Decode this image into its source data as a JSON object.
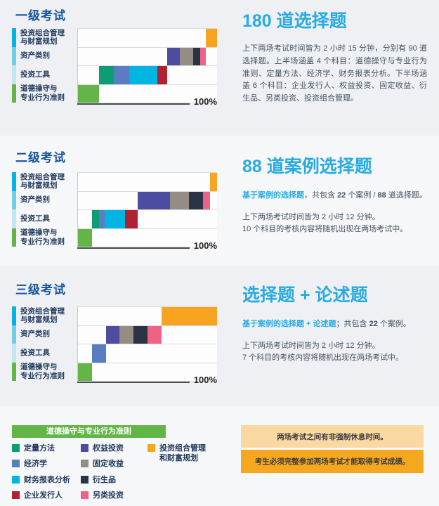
{
  "colors": {
    "header_blue": "#17549e",
    "title_cyan": "#29abe2",
    "body_text": "#44515f",
    "label_navy": "#21395c",
    "axis_dark": "#4a4d4f",
    "section_bg_gray": "#eef0f3",
    "section_bg_light": "#f6f7f9",
    "plot_bg": "#fdfdfe"
  },
  "subjects": {
    "ethics": {
      "label": "道德操守与专业行为准则",
      "color": "#62b546"
    },
    "quant": {
      "label": "定量方法",
      "color": "#0b9d74"
    },
    "econ": {
      "label": "经济学",
      "color": "#5a7cc1"
    },
    "fsa": {
      "label": "财务报表分析",
      "color": "#00b5e2"
    },
    "corporate": {
      "label": "企业发行人",
      "color": "#b02231"
    },
    "equity": {
      "label": "权益投资",
      "color": "#4c4ca0"
    },
    "fixed_income": {
      "label": "固定收益",
      "color": "#958c85"
    },
    "derivatives": {
      "label": "衍生品",
      "color": "#2b3444"
    },
    "alternatives": {
      "label": "另类投资",
      "color": "#ee6284"
    },
    "portfolio": {
      "label": "投资组合管理和财富规划",
      "color": "#f8a421"
    }
  },
  "sections": [
    {
      "header": "一级考试",
      "title": "180 道选择题",
      "paragraph": "上下两场考试时间皆为 2 小时 15 分钟，分别有 90 道选择题。上半场涵盖 4 个科目：道德操守与专业行为准则、定量方法、经济学、财务报表分析。下半场涵盖 6 个科目：企业发行人、权益投资、固定收益、衍生品、另类投资、投资组合管理。",
      "lead_parts": [],
      "lines": []
    },
    {
      "header": "二级考试",
      "title": "88 道案例选择题",
      "lead_parts": [
        {
          "text": "基于案例的选择题",
          "style": "cyan"
        },
        {
          "text": "，共包含 ",
          "style": "normal"
        },
        {
          "text": "22",
          "style": "bold"
        },
        {
          "text": " 个案例 / ",
          "style": "normal"
        },
        {
          "text": "88",
          "style": "bold"
        },
        {
          "text": " 道选择题。",
          "style": "normal"
        }
      ],
      "lines": [
        "上下两场考试时间皆为 2 小时 12 分钟。",
        "10 个科目的考核内容将随机出现在两场考试中。"
      ]
    },
    {
      "header": "三级考试",
      "title": "选择题 + 论述题",
      "lead_parts": [
        {
          "text": "基于案例的选择题 + 论述题",
          "style": "cyan"
        },
        {
          "text": "；共包含 ",
          "style": "normal"
        },
        {
          "text": "22",
          "style": "bold"
        },
        {
          "text": " 个案例。",
          "style": "normal"
        }
      ],
      "lines": [
        "上下两场考试时间皆为 2 小时 12 分钟。",
        "7 个科目的考核内容将随机出现在两场考试中。"
      ]
    }
  ],
  "chart_data": [
    {
      "type": "bar",
      "subtype": "waterfall-stacked-horizontal",
      "title": "一级考试 curriculum topic weights",
      "unit": "%",
      "x_range": [
        0,
        100
      ],
      "x_max_label": "100%",
      "rows": [
        {
          "label": [
            "投资组合管理",
            "与财富规划"
          ],
          "strip_color": "#00b5e2",
          "segments": [
            [
              "portfolio",
              92,
              8
            ]
          ]
        },
        {
          "label": [
            "资产类别"
          ],
          "strip_color": "#72cde8",
          "segments": [
            [
              "equity",
              64,
              9
            ],
            [
              "fixed_income",
              73,
              10
            ],
            [
              "derivatives",
              83,
              5
            ],
            [
              "alternatives",
              88,
              4
            ]
          ]
        },
        {
          "label": [
            "投资工具"
          ],
          "strip_color": "#c2e7f3",
          "segments": [
            [
              "quant",
              15,
              11
            ],
            [
              "econ",
              26,
              11
            ],
            [
              "fsa",
              37,
              20
            ],
            [
              "corporate",
              57,
              7
            ]
          ]
        },
        {
          "label": [
            "道德操守与",
            "专业行为准则"
          ],
          "strip_color": "#62b546",
          "segments": [
            [
              "ethics",
              0,
              15
            ]
          ]
        }
      ]
    },
    {
      "type": "bar",
      "subtype": "waterfall-stacked-horizontal",
      "title": "二级考试 curriculum topic weights",
      "unit": "%",
      "x_range": [
        0,
        100
      ],
      "x_max_label": "100%",
      "rows": [
        {
          "label": [
            "投资组合管理",
            "与财富规划"
          ],
          "strip_color": "#00b5e2",
          "segments": [
            [
              "portfolio",
              95,
              5
            ]
          ]
        },
        {
          "label": [
            "资产类别"
          ],
          "strip_color": "#72cde8",
          "segments": [
            [
              "equity",
              43,
              23
            ],
            [
              "fixed_income",
              66,
              14
            ],
            [
              "derivatives",
              80,
              10
            ],
            [
              "alternatives",
              90,
              5
            ]
          ]
        },
        {
          "label": [
            "投资工具"
          ],
          "strip_color": "#c2e7f3",
          "segments": [
            [
              "quant",
              10,
              5
            ],
            [
              "econ",
              15,
              4
            ],
            [
              "fsa",
              19,
              15
            ],
            [
              "corporate",
              34,
              9
            ]
          ]
        },
        {
          "label": [
            "道德操守与",
            "专业行为准则"
          ],
          "strip_color": "#62b546",
          "segments": [
            [
              "ethics",
              0,
              10
            ]
          ]
        }
      ]
    },
    {
      "type": "bar",
      "subtype": "waterfall-stacked-horizontal",
      "title": "三级考试 curriculum topic weights",
      "unit": "%",
      "x_range": [
        0,
        100
      ],
      "x_max_label": "100%",
      "rows": [
        {
          "label": [
            "投资组合管理",
            "与财富规划"
          ],
          "strip_color": "#00b5e2",
          "segments": [
            [
              "portfolio",
              60,
              40
            ]
          ]
        },
        {
          "label": [
            "资产类别"
          ],
          "strip_color": "#72cde8",
          "segments": [
            [
              "equity",
              20,
              10
            ],
            [
              "fixed_income",
              30,
              10
            ],
            [
              "derivatives",
              40,
              10
            ],
            [
              "alternatives",
              50,
              10
            ]
          ]
        },
        {
          "label": [
            "投资工具"
          ],
          "strip_color": "#c2e7f3",
          "segments": [
            [
              "econ",
              10,
              10
            ]
          ]
        },
        {
          "label": [
            "道德操守与",
            "专业行为准则"
          ],
          "strip_color": "#62b546",
          "segments": [
            [
              "ethics",
              0,
              10
            ]
          ]
        }
      ]
    }
  ],
  "legend": {
    "header": {
      "label": "道德操守与专业行为准则",
      "color": "#62b546"
    },
    "columns": [
      [
        "quant",
        "econ",
        "fsa",
        "corporate"
      ],
      [
        "equity",
        "fixed_income",
        "derivatives",
        "alternatives"
      ],
      [
        "portfolio"
      ]
    ]
  },
  "notices": [
    {
      "text": "两场考试之间有非强制休息时间。",
      "bg": "#fad8a1"
    },
    {
      "text": "考生必须完整参加两场考试才能取得考试成绩。",
      "bg": "#f5a81f"
    }
  ]
}
